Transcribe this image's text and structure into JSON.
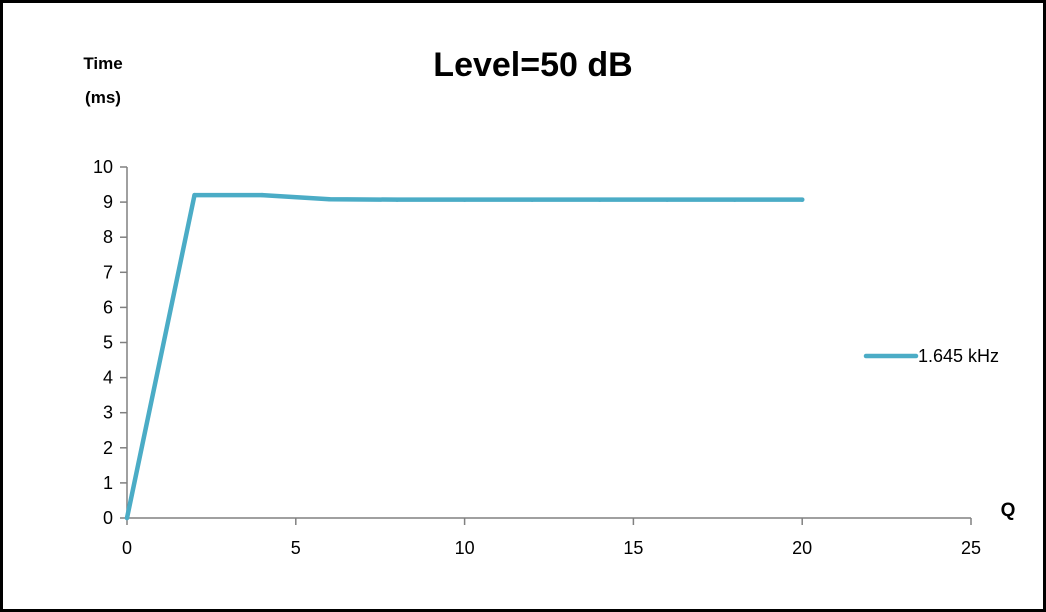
{
  "chart_data": {
    "type": "line",
    "title": "Level=50 dB",
    "ylabel": [
      "Time",
      "(ms)"
    ],
    "xlabel": "Q",
    "xlim": [
      0,
      25
    ],
    "ylim": [
      0,
      10
    ],
    "xticks": [
      0,
      5,
      10,
      15,
      20,
      25
    ],
    "yticks": [
      0,
      1,
      2,
      3,
      4,
      5,
      6,
      7,
      8,
      9,
      10
    ],
    "grid": false,
    "legend": "right",
    "series": [
      {
        "name": "1.645 kHz",
        "color": "#4bacc6",
        "x": [
          0,
          2,
          4,
          6,
          8,
          10,
          12,
          14,
          16,
          18,
          20
        ],
        "y": [
          0,
          9.2,
          9.2,
          9.08,
          9.07,
          9.07,
          9.07,
          9.07,
          9.07,
          9.07,
          9.07
        ]
      }
    ]
  }
}
